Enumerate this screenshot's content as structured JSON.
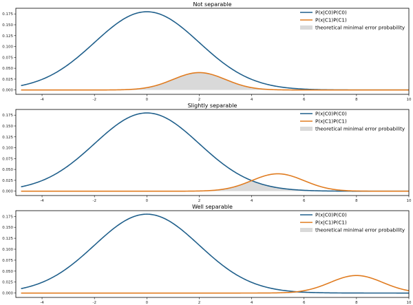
{
  "chart_data": [
    {
      "type": "line",
      "title": "Not separable",
      "xlim": [
        -5,
        10
      ],
      "ylim": [
        -0.01,
        0.188
      ],
      "xticks": [
        "-4",
        "-2",
        "0",
        "2",
        "4",
        "6",
        "8",
        "10"
      ],
      "yticks": [
        "0.000",
        "0.025",
        "0.050",
        "0.075",
        "0.100",
        "0.125",
        "0.150",
        "0.175"
      ],
      "series": [
        {
          "name": "P(x|C0)P(C0)",
          "color": "#1f5f8b",
          "mean": 0,
          "std": 2,
          "peak": 0.18
        },
        {
          "name": "P(x|C1)P(C1)",
          "color": "#e07b1f",
          "mean": 2,
          "std": 1,
          "peak": 0.04
        }
      ],
      "shaded": {
        "name": "theoretical minimal error probability",
        "color": "#d9d9d9"
      }
    },
    {
      "type": "line",
      "title": "Slightly separable",
      "xlim": [
        -5,
        10
      ],
      "ylim": [
        -0.01,
        0.188
      ],
      "xticks": [
        "-4",
        "-2",
        "0",
        "2",
        "4",
        "6",
        "8",
        "10"
      ],
      "yticks": [
        "0.000",
        "0.025",
        "0.050",
        "0.075",
        "0.100",
        "0.125",
        "0.150",
        "0.175"
      ],
      "series": [
        {
          "name": "P(x|C0)P(C0)",
          "color": "#1f5f8b",
          "mean": 0,
          "std": 2,
          "peak": 0.18
        },
        {
          "name": "P(x|C1)P(C1)",
          "color": "#e07b1f",
          "mean": 5,
          "std": 1,
          "peak": 0.04
        }
      ],
      "shaded": {
        "name": "theoretical minimal error probability",
        "color": "#d9d9d9"
      }
    },
    {
      "type": "line",
      "title": "Well separable",
      "xlim": [
        -5,
        10
      ],
      "ylim": [
        -0.01,
        0.188
      ],
      "xticks": [
        "-4",
        "-2",
        "0",
        "2",
        "4",
        "6",
        "8",
        "10"
      ],
      "yticks": [
        "0.000",
        "0.025",
        "0.050",
        "0.075",
        "0.100",
        "0.125",
        "0.150",
        "0.175"
      ],
      "series": [
        {
          "name": "P(x|C0)P(C0)",
          "color": "#1f5f8b",
          "mean": 0,
          "std": 2,
          "peak": 0.18
        },
        {
          "name": "P(x|C1)P(C1)",
          "color": "#e07b1f",
          "mean": 8,
          "std": 1,
          "peak": 0.04
        }
      ],
      "shaded": {
        "name": "theoretical minimal error probability",
        "color": "#d9d9d9"
      }
    }
  ]
}
